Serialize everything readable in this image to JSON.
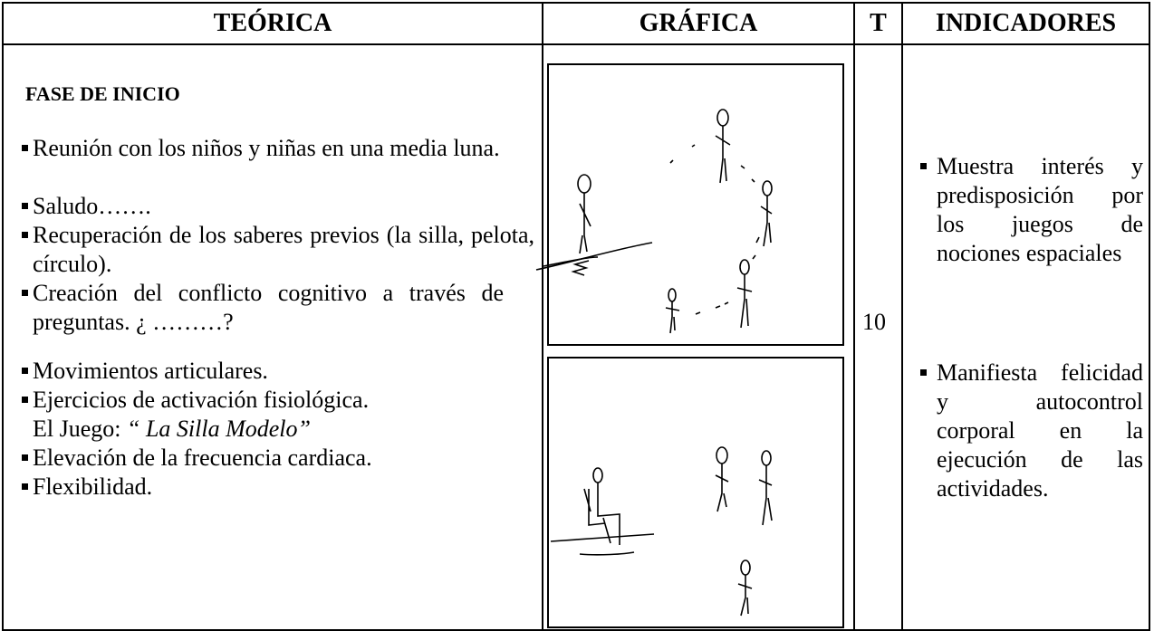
{
  "header": [
    "TEÓRICA",
    "GRÁFICA",
    "T",
    "INDICADORES"
  ],
  "teorica": {
    "heading": "FASE DE INICIO",
    "items": [
      "Reunión con los niños y niñas  en una media luna.",
      "Saludo…….",
      "Recuperación de los saberes previos (la silla, pelota, círculo).",
      "Creación del conflicto cognitivo a través de preguntas. ¿ ………?",
      "Movimientos articulares.",
      "Ejercicios  de activación fisiológica."
    ],
    "juego_label": "El Juego:",
    "juego_name": "“ La Silla Modelo”",
    "items_after": [
      "Elevación de la frecuencia cardiaca.",
      "Flexibilidad."
    ]
  },
  "tiempo": "10",
  "indicadores": [
    "Muestra interés y predisposición por los juegos de nociones espaciales",
    "Manifiesta felicidad y autocontrol corporal en la ejecución de las actividades."
  ]
}
